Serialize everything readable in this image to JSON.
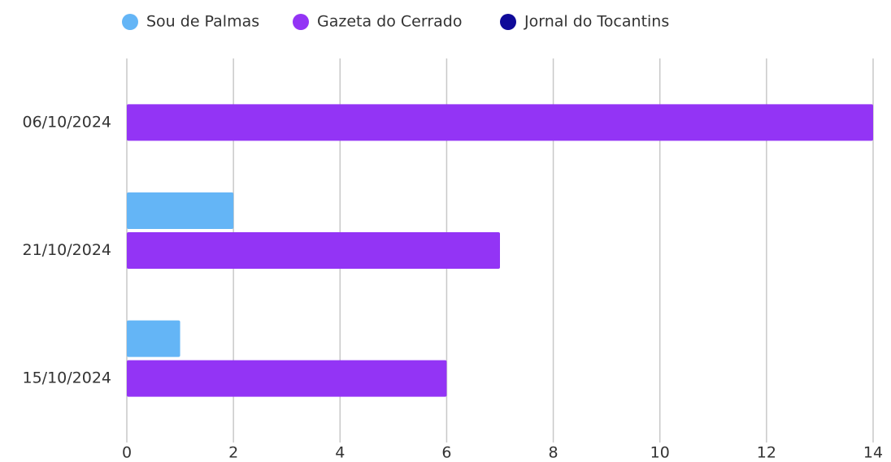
{
  "chart_data": {
    "type": "bar",
    "orientation": "horizontal",
    "categories": [
      "06/10/2024",
      "21/10/2024",
      "15/10/2024"
    ],
    "series": [
      {
        "name": "Sou de Palmas",
        "color": "#64b5f6",
        "values": [
          0,
          2,
          1
        ]
      },
      {
        "name": "Gazeta do Cerrado",
        "color": "#9334f5",
        "values": [
          14,
          7,
          6
        ]
      },
      {
        "name": "Jornal do Tocantins",
        "color": "#0f0a99",
        "values": [
          0,
          0,
          0
        ]
      }
    ],
    "xlim": [
      0,
      14
    ],
    "xticks": [
      0,
      2,
      4,
      6,
      8,
      10,
      12,
      14
    ],
    "grid": true,
    "legend": "top"
  }
}
